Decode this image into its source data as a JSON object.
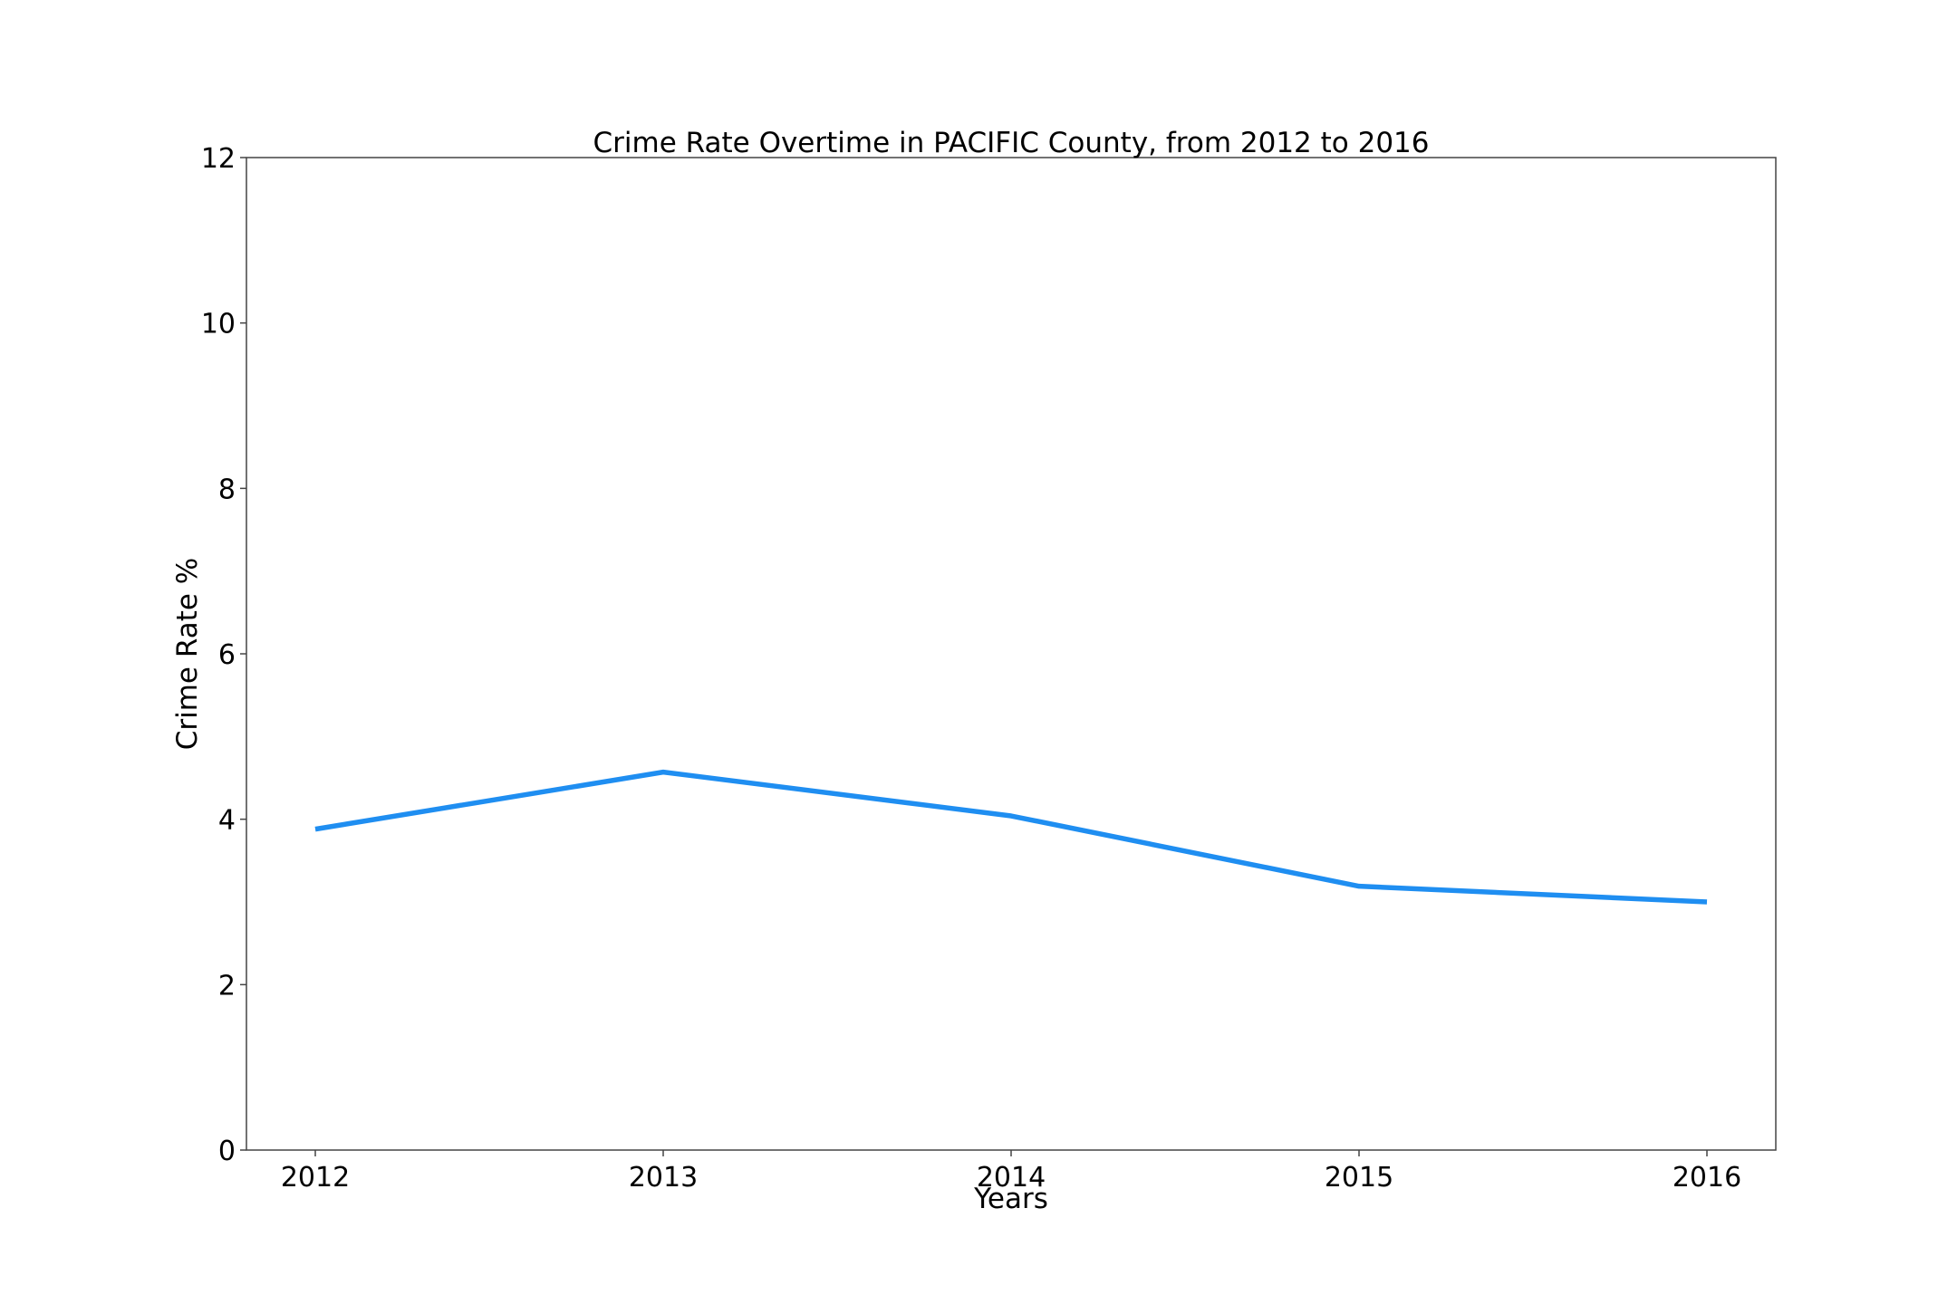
{
  "chart_data": {
    "type": "line",
    "title": "Crime Rate Overtime in PACIFIC County, from 2012 to 2016",
    "xlabel": "Years",
    "ylabel": "Crime Rate %",
    "x": [
      2012,
      2013,
      2014,
      2015,
      2016
    ],
    "x_tick_labels": [
      "2012",
      "2013",
      "2014",
      "2015",
      "2016"
    ],
    "ylim": [
      0,
      12
    ],
    "y_ticks": [
      0,
      2,
      4,
      6,
      8,
      10,
      12
    ],
    "y_tick_labels": [
      "0",
      "2",
      "4",
      "6",
      "8",
      "10",
      "12"
    ],
    "series": [
      {
        "values": [
          3.88,
          4.57,
          4.04,
          3.19,
          3.0
        ],
        "color": "#1f8ef1"
      }
    ],
    "grid": false,
    "legend": "none"
  }
}
